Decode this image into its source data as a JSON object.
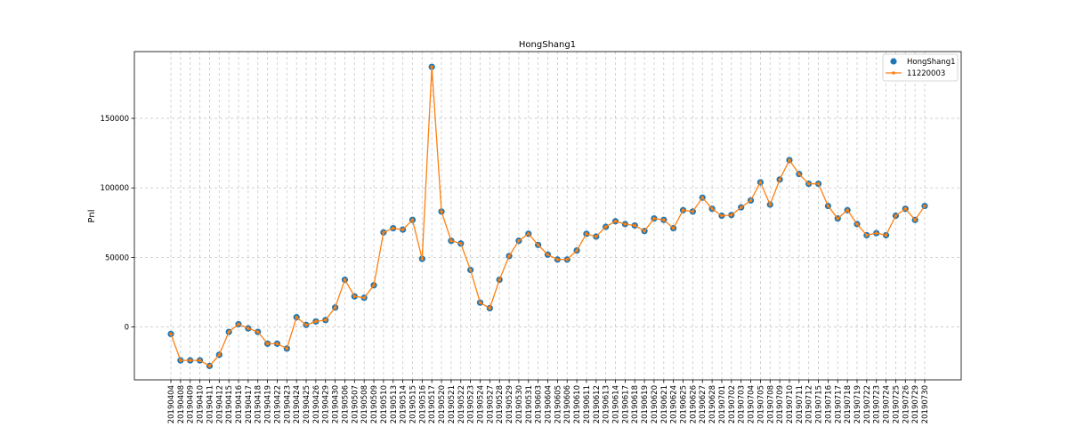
{
  "chart_data": {
    "type": "line",
    "title": "HongShang1",
    "xlabel": "",
    "ylabel": "Pnl",
    "ylim": [
      -38000,
      198000
    ],
    "yticks": [
      0,
      50000,
      100000,
      150000
    ],
    "grid": true,
    "legend_position": "upper right",
    "categories": [
      "20190404",
      "20190408",
      "20190409",
      "20190410",
      "20190411",
      "20190412",
      "20190415",
      "20190416",
      "20190417",
      "20190418",
      "20190419",
      "20190422",
      "20190423",
      "20190424",
      "20190425",
      "20190426",
      "20190429",
      "20190430",
      "20190506",
      "20190507",
      "20190508",
      "20190509",
      "20190510",
      "20190513",
      "20190514",
      "20190515",
      "20190516",
      "20190517",
      "20190520",
      "20190521",
      "20190522",
      "20190523",
      "20190524",
      "20190527",
      "20190528",
      "20190529",
      "20190530",
      "20190531",
      "20190603",
      "20190604",
      "20190605",
      "20190606",
      "20190610",
      "20190611",
      "20190612",
      "20190613",
      "20190614",
      "20190617",
      "20190618",
      "20190619",
      "20190620",
      "20190621",
      "20190624",
      "20190625",
      "20190626",
      "20190627",
      "20190628",
      "20190701",
      "20190702",
      "20190703",
      "20190704",
      "20190705",
      "20190708",
      "20190709",
      "20190710",
      "20190711",
      "20190712",
      "20190715",
      "20190716",
      "20190717",
      "20190718",
      "20190719",
      "20190722",
      "20190723",
      "20190724",
      "20190725",
      "20190726",
      "20190729",
      "20190730"
    ],
    "series": [
      {
        "name": "HongShang1",
        "color": "#1f77b4",
        "style": "dot",
        "values": [
          -5000,
          -24000,
          -24000,
          -24000,
          -28000,
          -20000,
          -3500,
          2000,
          -1000,
          -3500,
          -12000,
          -12000,
          -15500,
          7000,
          1500,
          4000,
          5000,
          14000,
          34000,
          22000,
          21000,
          30000,
          68000,
          71000,
          70000,
          77000,
          49000,
          187000,
          83000,
          62000,
          60000,
          41000,
          17500,
          13500,
          34000,
          51000,
          62000,
          67000,
          59000,
          52000,
          48500,
          48500,
          55000,
          67000,
          65000,
          72000,
          76000,
          74000,
          73000,
          69000,
          78000,
          77000,
          71000,
          84000,
          83000,
          93000,
          85000,
          80000,
          80500,
          86000,
          91000,
          104000,
          88000,
          106000,
          120000,
          110000,
          103000,
          103000,
          87000,
          78000,
          84000,
          74000,
          66000,
          67500,
          66000,
          80000,
          85000,
          77000,
          87000
        ]
      },
      {
        "name": "11220003",
        "color": "#ff7f0e",
        "style": "line-dot",
        "values": [
          -5000,
          -24000,
          -24000,
          -24000,
          -28000,
          -20000,
          -3500,
          2000,
          -1000,
          -3500,
          -12000,
          -12000,
          -15500,
          7000,
          1500,
          4000,
          5000,
          14000,
          34000,
          22000,
          21000,
          30000,
          68000,
          71000,
          70000,
          77000,
          49000,
          187000,
          83000,
          62000,
          60000,
          41000,
          17500,
          13500,
          34000,
          51000,
          62000,
          67000,
          59000,
          52000,
          48500,
          48500,
          55000,
          67000,
          65000,
          72000,
          76000,
          74000,
          73000,
          69000,
          78000,
          77000,
          71000,
          84000,
          83000,
          93000,
          85000,
          80000,
          80500,
          86000,
          91000,
          104000,
          88000,
          106000,
          120000,
          110000,
          103000,
          103000,
          87000,
          78000,
          84000,
          74000,
          66000,
          67500,
          66000,
          80000,
          85000,
          77000,
          87000
        ]
      }
    ]
  }
}
